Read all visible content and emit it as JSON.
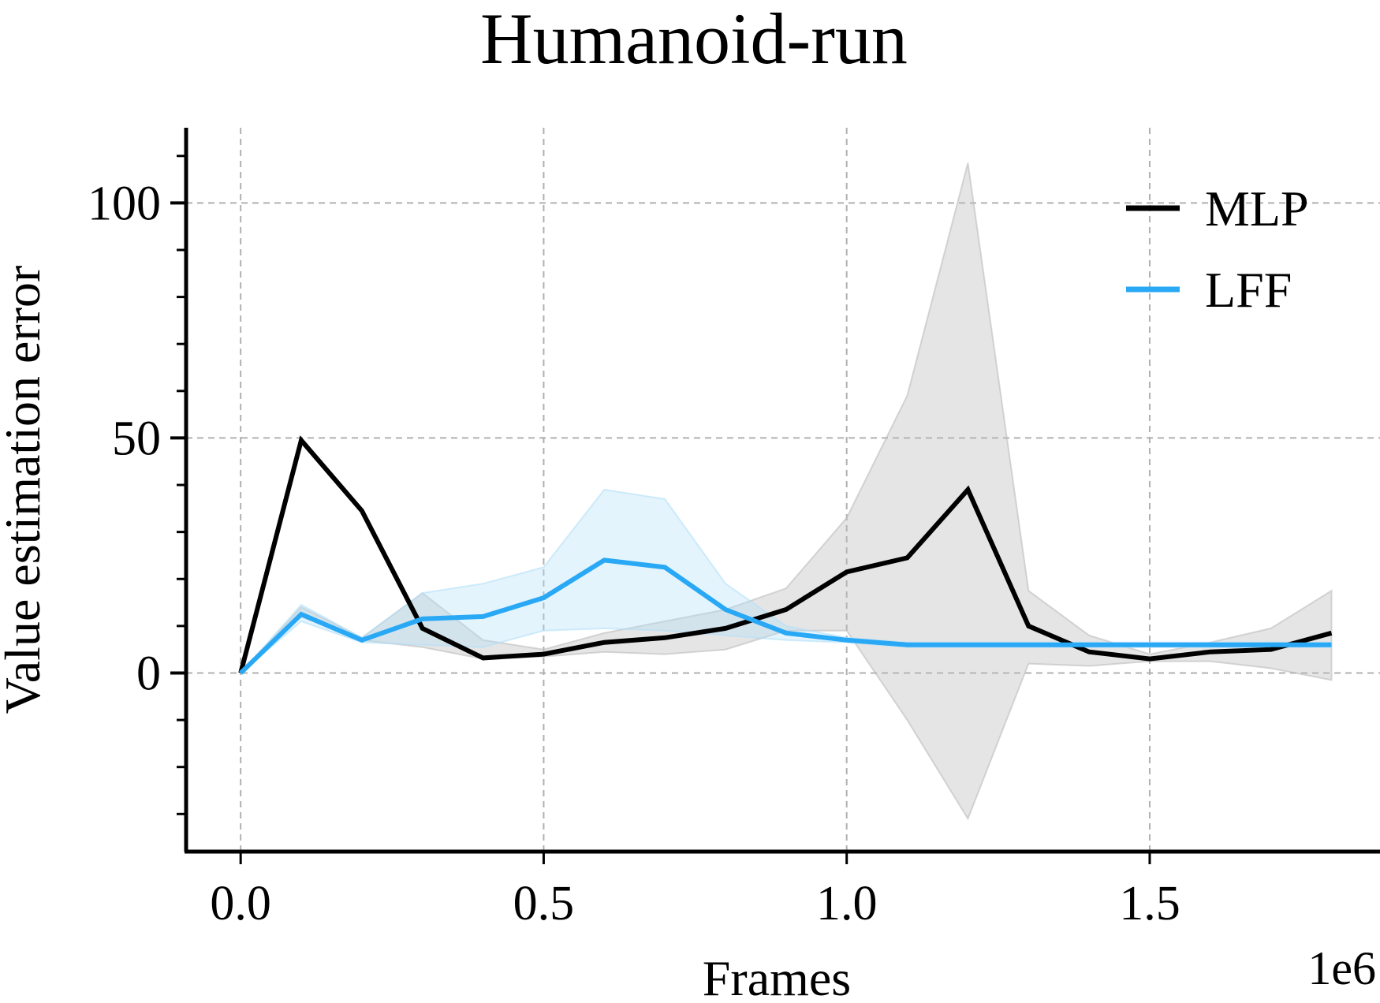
{
  "chart_data": {
    "type": "line",
    "title": "Humanoid-run",
    "xlabel": "Frames",
    "ylabel": "Value estimation error",
    "x_offset_text": "1e6",
    "xlim": [
      -0.09,
      1.88
    ],
    "ylim": [
      -38,
      116
    ],
    "xticks": [
      0.0,
      0.5,
      1.0,
      1.5
    ],
    "xtick_labels": [
      "0.0",
      "0.5",
      "1.0",
      "1.5"
    ],
    "yticks": [
      0,
      50,
      100
    ],
    "ytick_labels": [
      "0",
      "50",
      "100"
    ],
    "y_minor_ticks": [
      -30,
      -20,
      -10,
      10,
      20,
      30,
      40,
      60,
      70,
      80,
      90,
      110
    ],
    "grid": true,
    "legend_position": "top-right",
    "x": [
      0.0,
      0.1,
      0.2,
      0.3,
      0.4,
      0.5,
      0.6,
      0.7,
      0.8,
      0.9,
      1.0,
      1.1,
      1.2,
      1.3,
      1.4,
      1.5,
      1.6,
      1.7,
      1.8
    ],
    "series": [
      {
        "name": "MLP",
        "color": "#000000",
        "band_color": "#bdbdbd",
        "values": [
          0,
          49.5,
          34.5,
          9.5,
          3.2,
          4,
          6.5,
          7.5,
          9.5,
          13.5,
          21.5,
          24.5,
          39,
          10,
          4.5,
          3,
          4.5,
          5,
          8.5
        ],
        "lower": [
          0,
          12,
          7,
          5.5,
          3,
          3.5,
          4.5,
          4,
          5,
          9,
          9,
          -10,
          -31,
          2,
          1.5,
          2.5,
          2.5,
          1,
          -1.5
        ],
        "upper": [
          0,
          14,
          7.5,
          17,
          7,
          5,
          8.5,
          11,
          13.5,
          18,
          33,
          59,
          108.5,
          17.5,
          8,
          4,
          6.5,
          9.5,
          17.5
        ]
      },
      {
        "name": "LFF",
        "color": "#29a8f5",
        "band_color": "#b3e0f8",
        "values": [
          0,
          12.5,
          7,
          11.5,
          12,
          16,
          24,
          22.5,
          13.5,
          8.5,
          7,
          6,
          6,
          6,
          6,
          6,
          6,
          6,
          6
        ],
        "lower": [
          0,
          11,
          6.5,
          6,
          5.5,
          9,
          9.5,
          9,
          8,
          7,
          6.5,
          5.5,
          5.5,
          5.5,
          5.5,
          5.5,
          5.5,
          5.5,
          5.5
        ],
        "upper": [
          0,
          14.5,
          7.5,
          17,
          19,
          22.5,
          39,
          37,
          19,
          10,
          7.5,
          6.5,
          6.5,
          6.5,
          6.5,
          6.5,
          6.5,
          6.5,
          6.5
        ]
      }
    ]
  }
}
